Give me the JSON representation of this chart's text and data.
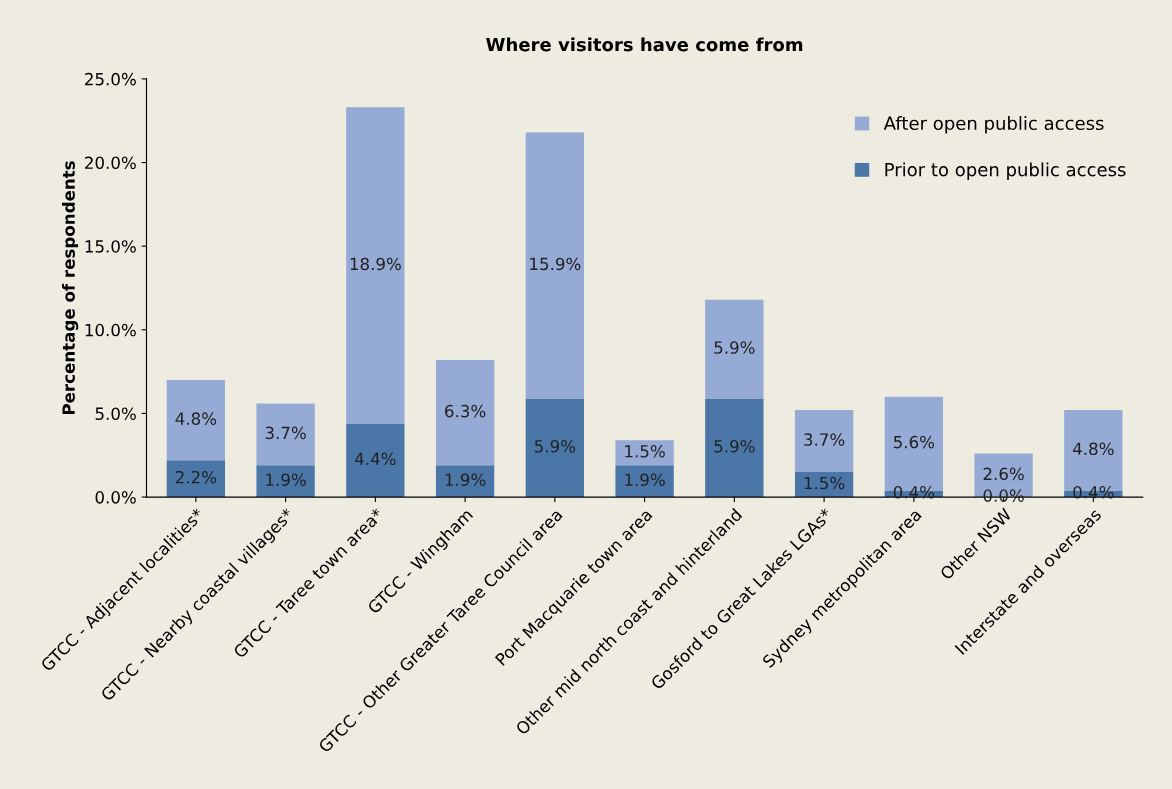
{
  "chart_data": {
    "type": "bar",
    "title": "Where visitors have come from",
    "ylabel": "Percentage of respondents",
    "categories": [
      "GTCC - Adjacent localities*",
      "GTCC - Nearby coastal villages*",
      "GTCC - Taree town area*",
      "GTCC - Wingham",
      "GTCC - Other Greater Taree Council area",
      "Port Macquarie town area",
      "Other mid north coast and hinterland",
      "Gosford to Great Lakes LGAs*",
      "Sydney metropolitan area",
      "Other NSW",
      "Interstate and overseas"
    ],
    "stacked": true,
    "series": [
      {
        "name": "Prior to open public access",
        "color": "#4a76a8",
        "values": [
          2.2,
          1.9,
          4.4,
          1.9,
          5.9,
          1.9,
          5.9,
          1.5,
          0.4,
          0.0,
          0.4
        ],
        "value_labels": [
          "2.2%",
          "1.9%",
          "4.4%",
          "1.9%",
          "5.9%",
          "1.9%",
          "5.9%",
          "1.5%",
          "0.4%",
          "0.0%",
          "0.4%"
        ]
      },
      {
        "name": "After open public access",
        "color": "#95aad4",
        "values": [
          4.8,
          3.7,
          18.9,
          6.3,
          15.9,
          1.5,
          5.9,
          3.7,
          5.6,
          2.6,
          4.8
        ],
        "value_labels": [
          "4.8%",
          "3.7%",
          "18.9%",
          "6.3%",
          "15.9%",
          "1.5%",
          "5.9%",
          "3.7%",
          "5.6%",
          "2.6%",
          "4.8%"
        ]
      }
    ],
    "ylim": [
      0,
      25
    ],
    "yticks": [
      {
        "value": 0,
        "label": "0.0%"
      },
      {
        "value": 5,
        "label": "5.0%"
      },
      {
        "value": 10,
        "label": "10.0%"
      },
      {
        "value": 15,
        "label": "15.0%"
      },
      {
        "value": 20,
        "label": "20.0%"
      },
      {
        "value": 25,
        "label": "25.0%"
      }
    ],
    "grid": false,
    "legend": "top right"
  }
}
